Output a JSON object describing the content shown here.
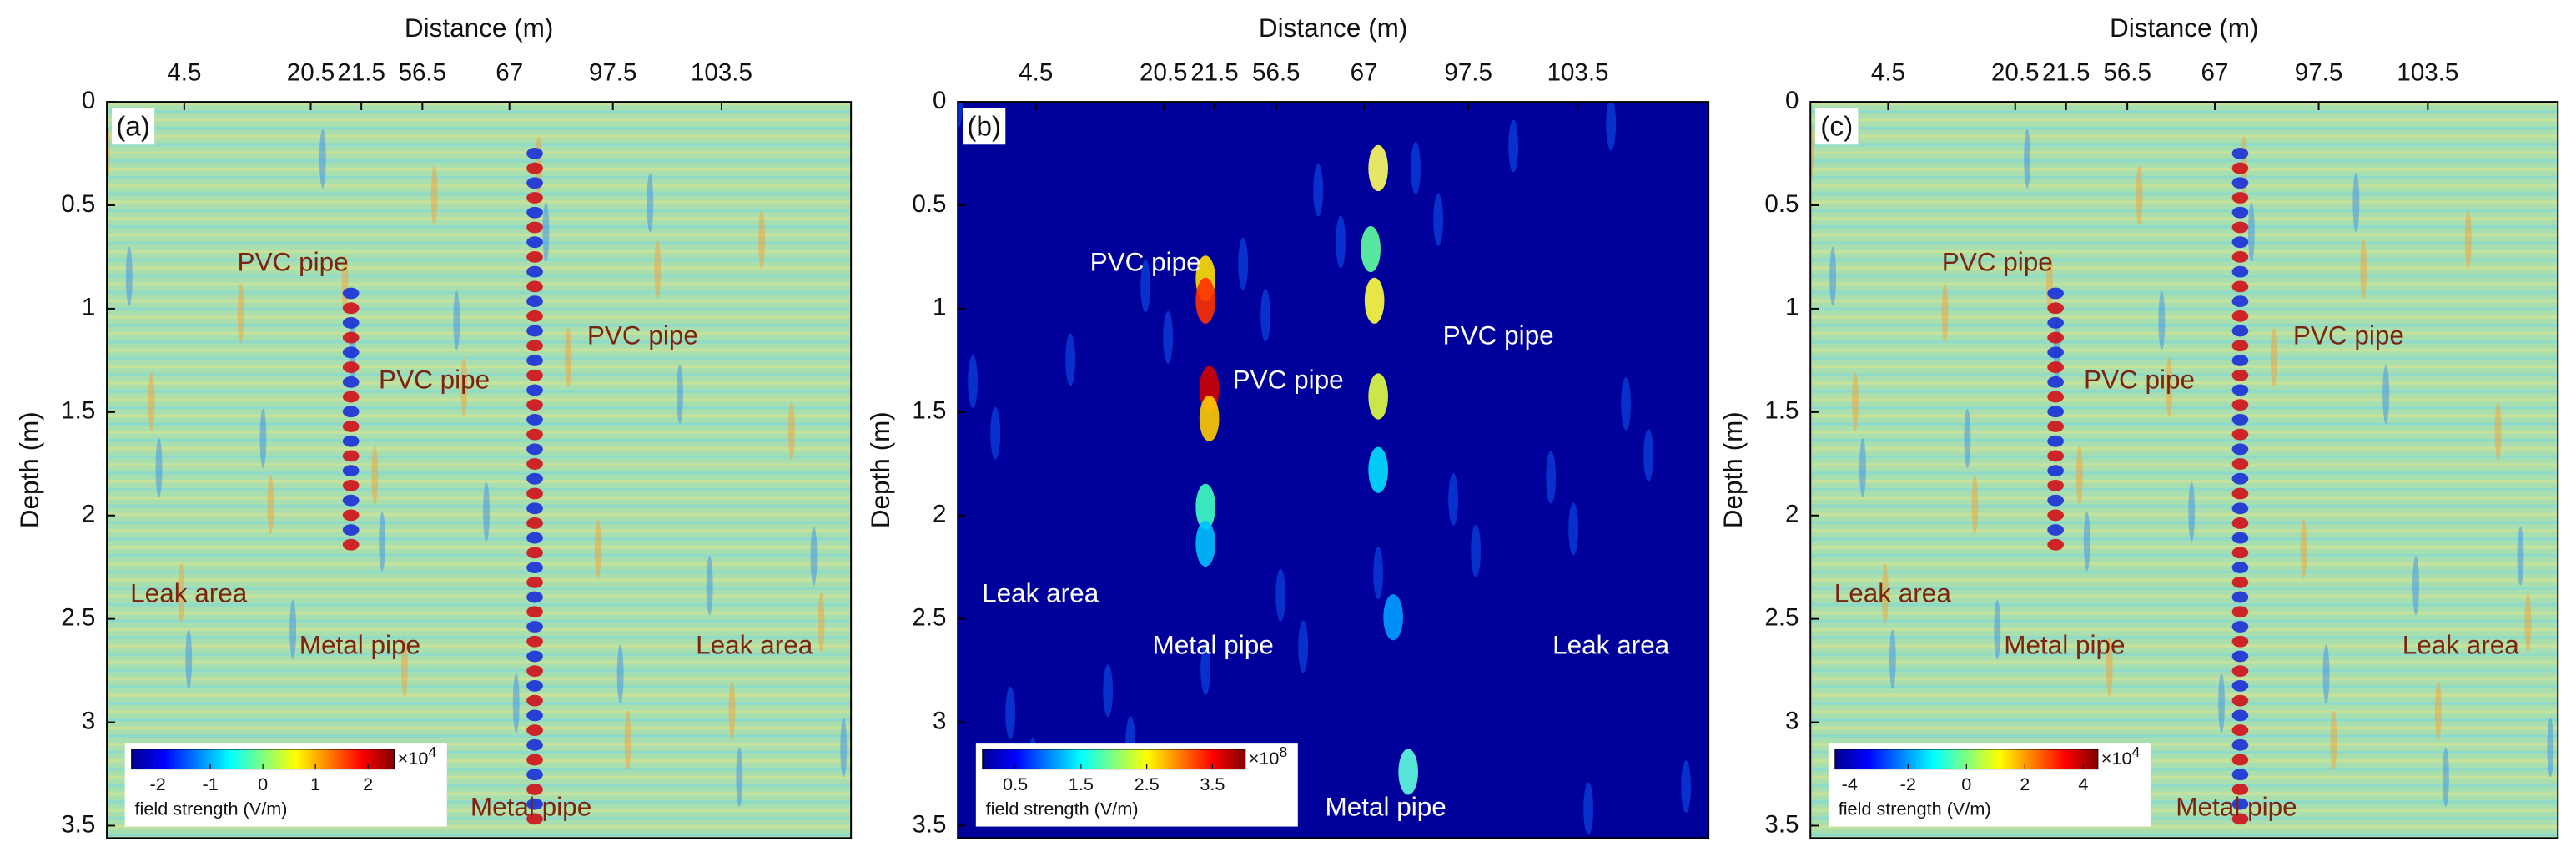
{
  "chart_data": [
    {
      "type": "heatmap",
      "panel_label": "(a)",
      "x_label": "Distance (m)",
      "categories": [
        "4.5",
        "20.5",
        "21.5",
        "56.5",
        "67",
        "97.5",
        "103.5"
      ],
      "y_label": "Depth (m)",
      "ylim": [
        0,
        3.56
      ],
      "yticks": [
        0,
        0.5,
        1,
        1.5,
        2,
        2.5,
        3,
        3.5
      ],
      "colormap": "jet",
      "colorbar": {
        "label": "field strength (V/m)",
        "multiplier": "×10",
        "exponent": 4,
        "lim": [
          -2.5,
          2.5
        ],
        "ticks": [
          -2,
          -1,
          0,
          1,
          2
        ]
      },
      "annotations": [
        "PVC pipe",
        "PVC pipe",
        "PVC pipe",
        "Leak area",
        "Metal pipe",
        "Leak area",
        "Metal pipe"
      ]
    },
    {
      "type": "heatmap",
      "panel_label": "(b)",
      "x_label": "Distance (m)",
      "categories": [
        "4.5",
        "20.5",
        "21.5",
        "56.5",
        "67",
        "97.5",
        "103.5"
      ],
      "y_label": "Depth (m)",
      "ylim": [
        0,
        3.56
      ],
      "yticks": [
        0,
        0.5,
        1,
        1.5,
        2,
        2.5,
        3,
        3.5
      ],
      "colormap": "jet",
      "colorbar": {
        "label": "field strength (V/m)",
        "multiplier": "×10",
        "exponent": 8,
        "lim": [
          0,
          4
        ],
        "ticks": [
          0.5,
          1.5,
          2.5,
          3.5
        ]
      },
      "annotations": [
        "PVC pipe",
        "PVC pipe",
        "PVC pipe",
        "Leak area",
        "Metal pipe",
        "Leak area",
        "Metal pipe"
      ]
    },
    {
      "type": "heatmap",
      "panel_label": "(c)",
      "x_label": "Distance (m)",
      "categories": [
        "4.5",
        "20.5",
        "21.5",
        "56.5",
        "67",
        "97.5",
        "103.5"
      ],
      "y_label": "Depth (m)",
      "ylim": [
        0,
        3.56
      ],
      "yticks": [
        0,
        0.5,
        1,
        1.5,
        2,
        2.5,
        3,
        3.5
      ],
      "colormap": "jet",
      "colorbar": {
        "label": "field strength (V/m)",
        "multiplier": "×10",
        "exponent": 4,
        "lim": [
          -4.5,
          4.5
        ],
        "ticks": [
          -4,
          -2,
          0,
          2,
          4
        ]
      },
      "annotations": [
        "PVC pipe",
        "PVC pipe",
        "PVC pipe",
        "Leak area",
        "Metal pipe",
        "Leak area",
        "Metal pipe"
      ]
    }
  ]
}
